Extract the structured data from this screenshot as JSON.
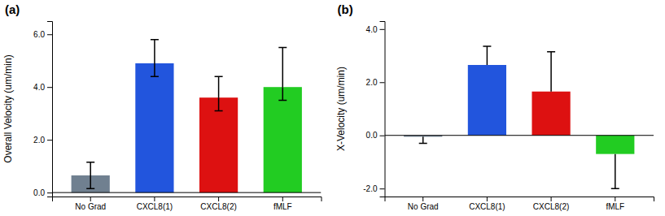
{
  "chart_data": [
    {
      "type": "bar",
      "title": "(a)",
      "ylabel": "Overall Velocity (um/min)",
      "categories": [
        "No Grad",
        "CXCL8(1)",
        "CXCL8(2)",
        "fMLF"
      ],
      "values": [
        0.65,
        4.9,
        3.6,
        4.0
      ],
      "errors_up": [
        0.5,
        0.9,
        0.8,
        1.5
      ],
      "errors_down": [
        0.5,
        0.5,
        0.5,
        0.5
      ],
      "colors": [
        "#708090",
        "#2255dd",
        "#dd1111",
        "#22cc22"
      ],
      "ylim": [
        -0.15,
        6.5
      ],
      "yticks": [
        {
          "value": 0.0,
          "label": "0.0"
        },
        {
          "value": 2.0,
          "label": "2.0"
        },
        {
          "value": 4.0,
          "label": "4.0"
        },
        {
          "value": 6.0,
          "label": "6.0"
        }
      ],
      "grid": false
    },
    {
      "type": "bar",
      "title": "(b)",
      "ylabel": "X-Velocity (um/min)",
      "categories": [
        "No Grad",
        "CXCL8(1)",
        "CXCL8(2)",
        "fMLF"
      ],
      "values": [
        -0.05,
        2.65,
        1.65,
        -0.7
      ],
      "errors_up": [
        0.0,
        0.7,
        1.5,
        0.0
      ],
      "errors_down": [
        0.25,
        0.0,
        0.0,
        1.3
      ],
      "colors": [
        "#708090",
        "#2255dd",
        "#dd1111",
        "#22cc22"
      ],
      "ylim": [
        -2.3,
        4.3
      ],
      "yticks": [
        {
          "value": -2.0,
          "label": "-2.0"
        },
        {
          "value": 0.0,
          "label": "0.0"
        },
        {
          "value": 2.0,
          "label": "2.0"
        },
        {
          "value": 4.0,
          "label": "4.0"
        }
      ],
      "grid": false
    }
  ]
}
